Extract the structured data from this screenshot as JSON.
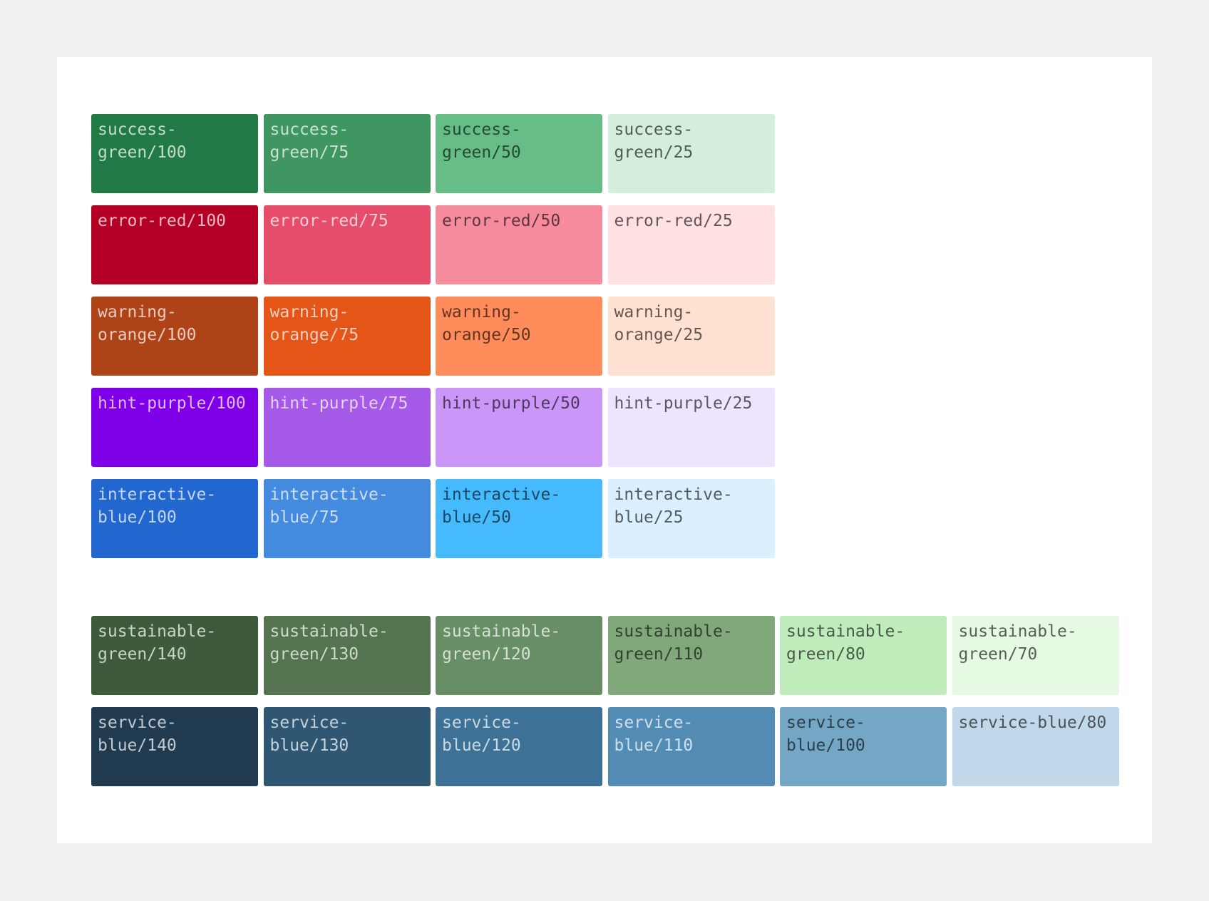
{
  "groups": [
    {
      "rows": [
        [
          {
            "label": "success-green/100",
            "color": "#217a45"
          },
          {
            "label": "success-green/75",
            "color": "#3f9660"
          },
          {
            "label": "success-green/50",
            "color": "#66bd86"
          },
          {
            "label": "success-green/25",
            "color": "#d3eedc"
          }
        ],
        [
          {
            "label": "error-red/100",
            "color": "#b30024"
          },
          {
            "label": "error-red/75",
            "color": "#e64d6b"
          },
          {
            "label": "error-red/50",
            "color": "#f78b9e"
          },
          {
            "label": "error-red/25",
            "color": "#ffe0e3"
          }
        ],
        [
          {
            "label": "warning-orange/100",
            "color": "#ae4317"
          },
          {
            "label": "warning-orange/75",
            "color": "#e45517"
          },
          {
            "label": "warning-orange/50",
            "color": "#ff8c5a"
          },
          {
            "label": "warning-orange/25",
            "color": "#ffe1d2"
          }
        ],
        [
          {
            "label": "hint-purple/100",
            "color": "#7f00e8"
          },
          {
            "label": "hint-purple/75",
            "color": "#a65ae8"
          },
          {
            "label": "hint-purple/50",
            "color": "#cb96f8"
          },
          {
            "label": "hint-purple/25",
            "color": "#ede4fe"
          }
        ],
        [
          {
            "label": "interactive-blue/100",
            "color": "#2267d0"
          },
          {
            "label": "interactive-blue/75",
            "color": "#448ade"
          },
          {
            "label": "interactive-blue/50",
            "color": "#45bbfe"
          },
          {
            "label": "interactive-blue/25",
            "color": "#dbf0fe"
          }
        ]
      ]
    },
    {
      "rows": [
        [
          {
            "label": "sustainable-green/140",
            "color": "#3d5a3b"
          },
          {
            "label": "sustainable-green/130",
            "color": "#53744e"
          },
          {
            "label": "sustainable-green/120",
            "color": "#688e65"
          },
          {
            "label": "sustainable-green/110",
            "color": "#80a87b"
          },
          {
            "label": "sustainable-green/80",
            "color": "#c0ebbb"
          },
          {
            "label": "sustainable-green/70",
            "color": "#e6f9e3"
          }
        ],
        [
          {
            "label": "service-blue/140",
            "color": "#203a4f"
          },
          {
            "label": "service-blue/130",
            "color": "#2f5774"
          },
          {
            "label": "service-blue/120",
            "color": "#3d7195"
          },
          {
            "label": "service-blue/110",
            "color": "#528cb5"
          },
          {
            "label": "service-blue/100",
            "color": "#74a6c6"
          },
          {
            "label": "service-blue/80",
            "color": "#c1d8ea"
          }
        ]
      ]
    }
  ]
}
